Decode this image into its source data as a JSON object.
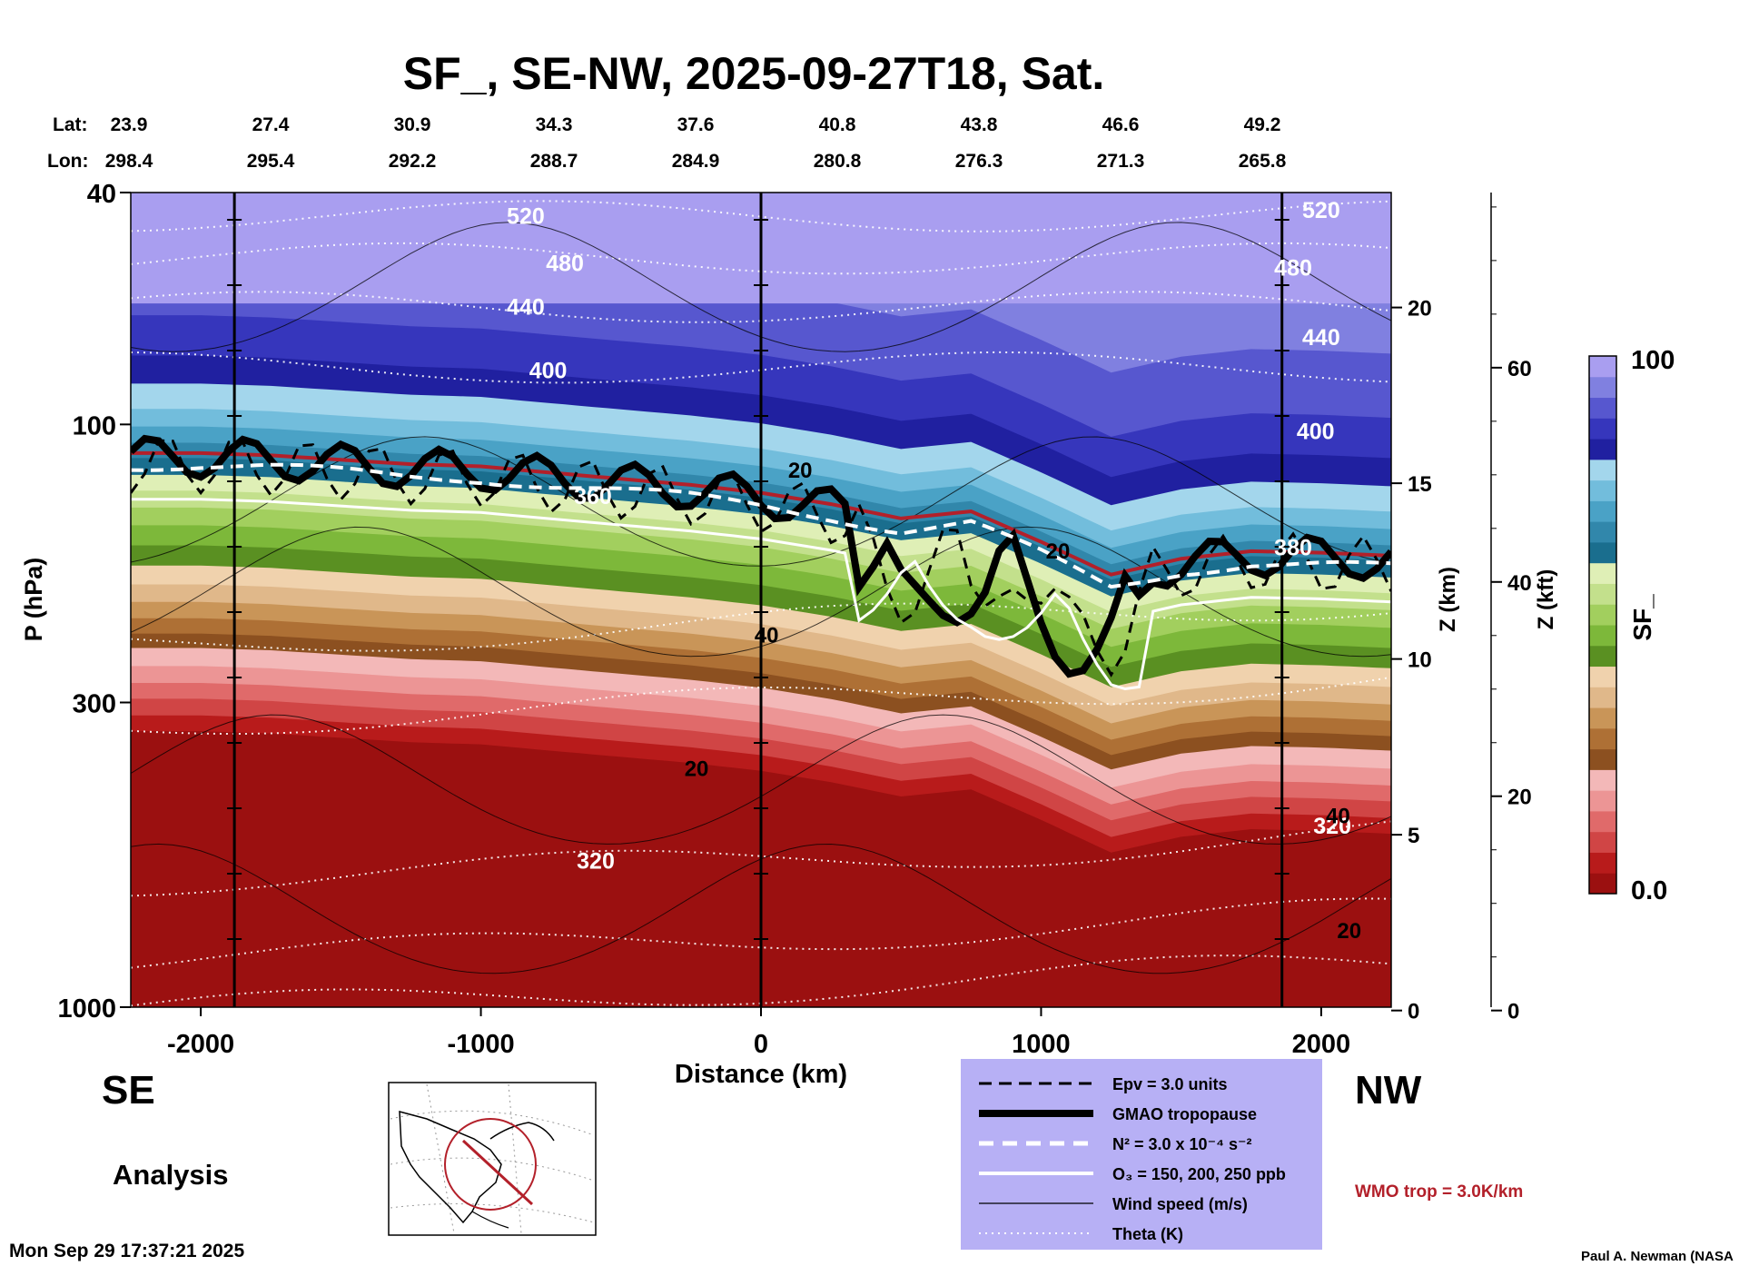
{
  "title": "SF_, SE-NW, 2025-09-27T18, Sat.",
  "lat_label": "Lat:",
  "lon_label": "Lon:",
  "lat_values": [
    "23.9",
    "27.4",
    "30.9",
    "34.3",
    "37.6",
    "40.8",
    "43.8",
    "46.6",
    "49.2"
  ],
  "lon_values": [
    "298.4",
    "295.4",
    "292.2",
    "288.7",
    "284.9",
    "280.8",
    "276.3",
    "271.3",
    "265.8"
  ],
  "direction_left": "SE",
  "direction_right": "NW",
  "analysis_label": "Analysis",
  "timestamp": "Mon Sep 29 17:37:21 2025",
  "credit": "Paul A. Newman (NASA",
  "wmo_label": "WMO trop = 3.0K/km",
  "colorbar": {
    "label": "SF_",
    "max_label": "100",
    "min_label": "0.0",
    "colors": [
      "#9b1010",
      "#b81b1b",
      "#d04545",
      "#e06a6a",
      "#ec9595",
      "#f3b8b8",
      "#8c5020",
      "#ae7035",
      "#c99558",
      "#e0b88a",
      "#f0d2ad",
      "#5a9022",
      "#7db83a",
      "#a2cf5e",
      "#c3e08c",
      "#dfefb6",
      "#1a6e8e",
      "#3187ab",
      "#4aa2c6",
      "#72bddc",
      "#a3d6ec",
      "#2020a0",
      "#3636bc",
      "#5757cf",
      "#8080e0",
      "#a99ef0"
    ]
  },
  "legend": {
    "items": [
      {
        "label": "Epv = 3.0 units",
        "style": "dash-black"
      },
      {
        "label": "GMAO tropopause",
        "style": "thick-black"
      },
      {
        "label": "N² = 3.0 x 10⁻⁴ s⁻²",
        "style": "dash-white"
      },
      {
        "label": "O₃ = 150, 200, 250 ppb",
        "style": "solid-white"
      },
      {
        "label": "Wind speed (m/s)",
        "style": "thin-black"
      },
      {
        "label": "Theta (K)",
        "style": "dotted-white"
      }
    ],
    "background": "#b7b0f5"
  },
  "chart_data": {
    "type": "heatmap",
    "title": "SF_, SE-NW, 2025-09-27T18, Sat.",
    "xlabel": "Distance (km)",
    "ylabel": "P (hPa)",
    "y2label": "Z (km)",
    "y3label": "Z (kft)",
    "xlim": [
      -2250,
      2250
    ],
    "x_ticks": [
      -2000,
      -1000,
      0,
      1000,
      2000
    ],
    "x_tick_labels": [
      "-2000",
      "-1000",
      "0",
      "1000",
      "2000"
    ],
    "ylim_hpa": [
      1000,
      40
    ],
    "y_scale": "log",
    "y_ticks": [
      40,
      100,
      300,
      1000
    ],
    "y_tick_labels": [
      "40",
      "100",
      "300",
      "1000"
    ],
    "z_km_ticks": [
      0,
      5,
      10,
      15,
      20
    ],
    "z_km_labels": [
      "0",
      "5",
      "10",
      "15",
      "20"
    ],
    "z_kft_ticks": [
      0,
      20,
      40,
      60
    ],
    "z_kft_labels": [
      "0",
      "20",
      "40",
      "60"
    ],
    "colorbar_range": [
      0.0,
      100
    ],
    "tropopause_pressure_hpa": {
      "x": [
        -2250,
        -2000,
        -1750,
        -1500,
        -1250,
        -1000,
        -750,
        -500,
        -250,
        0,
        250,
        500,
        750,
        1000,
        1250,
        1500,
        1750,
        2000,
        2250
      ],
      "values": [
        112,
        112,
        113,
        115,
        117,
        118,
        121,
        124,
        127,
        131,
        137,
        145,
        141,
        159,
        181,
        170,
        165,
        166,
        168
      ]
    },
    "theta_labels": [
      {
        "text": "520",
        "x": -840,
        "p": 44
      },
      {
        "text": "480",
        "x": -700,
        "p": 53
      },
      {
        "text": "440",
        "x": -840,
        "p": 63
      },
      {
        "text": "400",
        "x": -760,
        "p": 81
      },
      {
        "text": "360",
        "x": -600,
        "p": 133
      },
      {
        "text": "320",
        "x": -590,
        "p": 562
      },
      {
        "text": "520",
        "x": 2000,
        "p": 43
      },
      {
        "text": "480",
        "x": 1900,
        "p": 54
      },
      {
        "text": "440",
        "x": 2000,
        "p": 71
      },
      {
        "text": "400",
        "x": 1980,
        "p": 103
      },
      {
        "text": "380",
        "x": 1900,
        "p": 163
      },
      {
        "text": "320",
        "x": 2040,
        "p": 490
      }
    ],
    "wind_labels": [
      {
        "text": "20",
        "x": 140,
        "p": 120
      },
      {
        "text": "20",
        "x": -230,
        "p": 390
      },
      {
        "text": "40",
        "x": 20,
        "p": 230
      },
      {
        "text": "20",
        "x": 1060,
        "p": 165
      },
      {
        "text": "40",
        "x": 2060,
        "p": 470
      },
      {
        "text": "20",
        "x": 2100,
        "p": 740
      }
    ]
  }
}
